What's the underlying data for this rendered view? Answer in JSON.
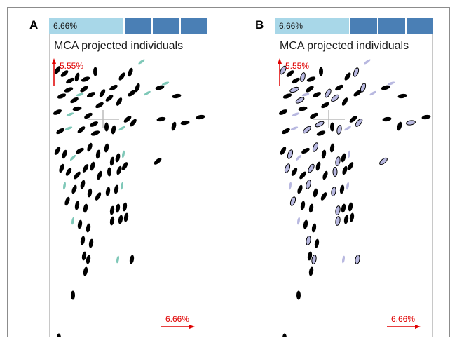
{
  "panels": [
    {
      "letter": "A",
      "bar_percent": "6.66%",
      "title": "MCA projected individuals",
      "y_axis_label": "5.55%",
      "x_axis_label": "6.66%",
      "colors": {
        "primary": "#000000",
        "secondary": "#7fc8b8"
      }
    },
    {
      "letter": "B",
      "bar_percent": "6.66%",
      "title": "MCA projected individuals",
      "y_axis_label": "5.55%",
      "x_axis_label": "6.66%",
      "colors": {
        "primary": "#000000",
        "secondary": "#b8b8e0"
      }
    }
  ],
  "colors": {
    "accent_red": "#e00000",
    "bar_light": "#a8d7e8",
    "bar_dark": "#4a7fb5"
  }
}
